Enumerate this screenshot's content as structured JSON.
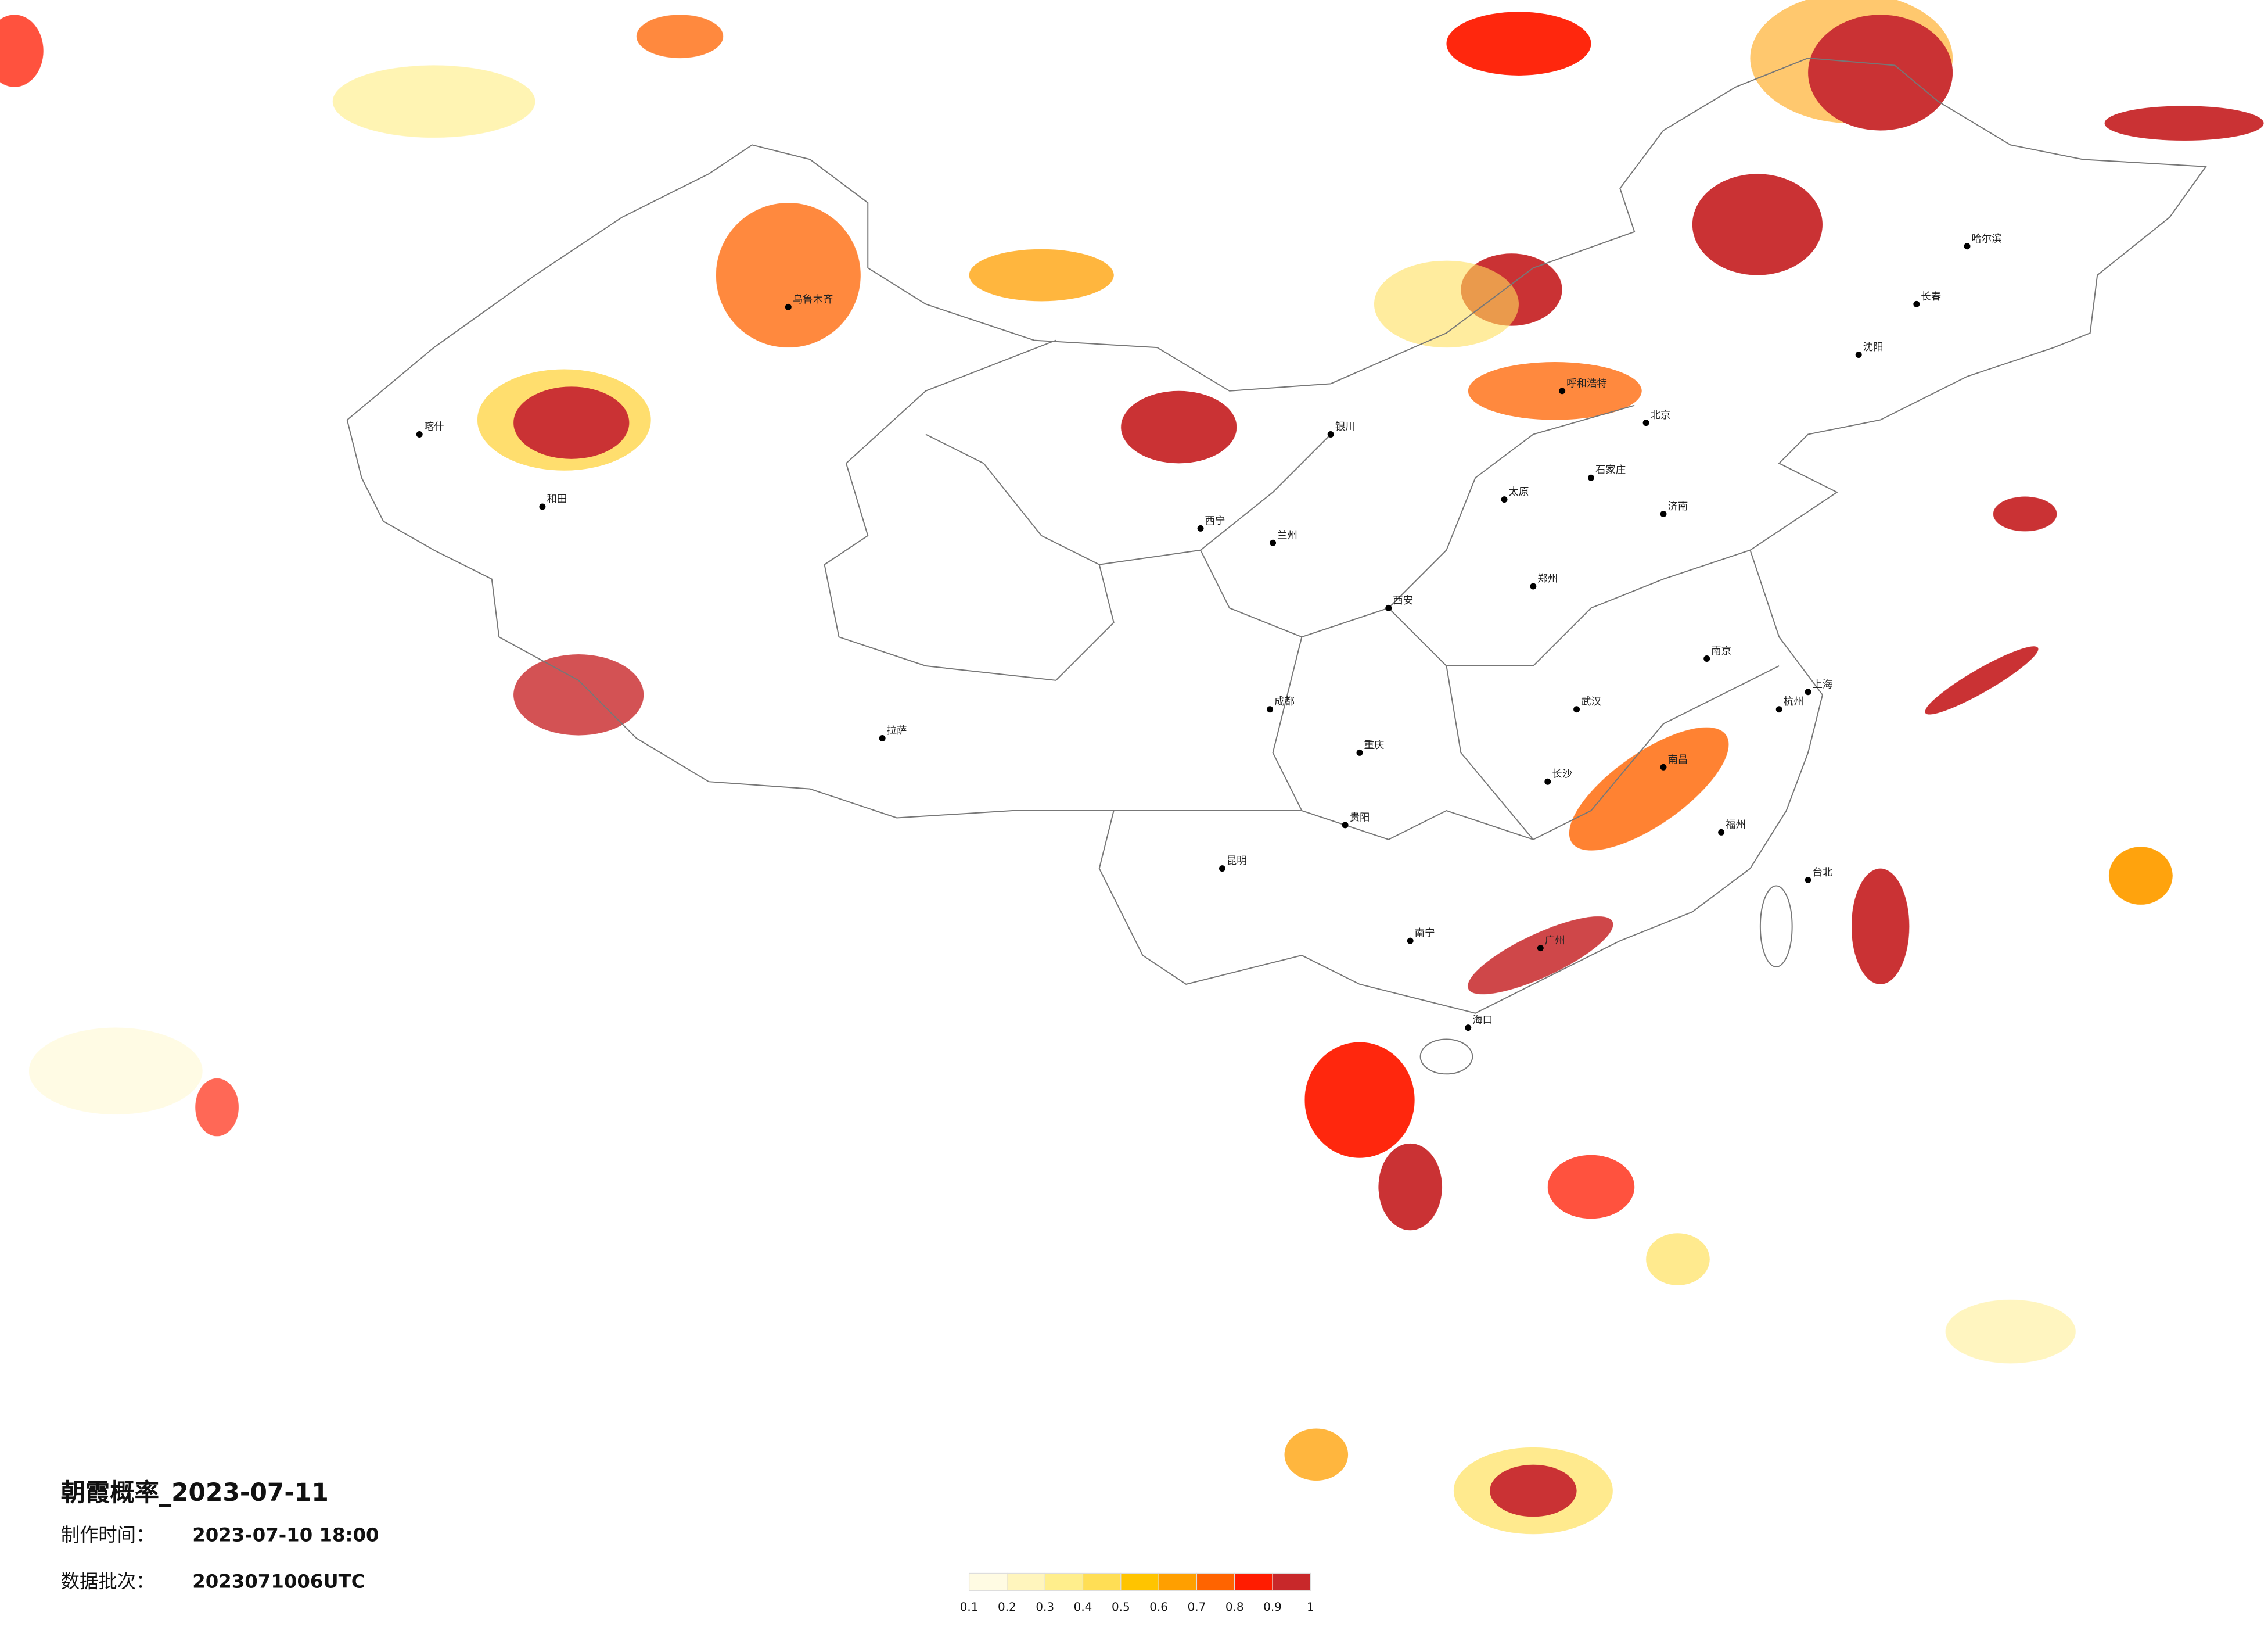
{
  "header": {
    "title": "朝霞概率_2023-07-11",
    "made_label": "制作时间：",
    "made_time": "2023-07-10 18:00",
    "batch_label": "数据批次：",
    "batch": "2023071006UTC"
  },
  "legend": {
    "ticks": [
      0.1,
      0.2,
      0.3,
      0.4,
      0.5,
      0.6,
      0.7,
      0.8,
      0.9,
      1
    ],
    "colors": [
      "#fffbe3",
      "#fff5bd",
      "#ffee8c",
      "#ffde55",
      "#ffc400",
      "#ff9f00",
      "#ff6400",
      "#ff1c00",
      "#c8282a"
    ]
  },
  "cities": [
    "北京",
    "上海",
    "广州",
    "乌鲁木齐",
    "拉萨",
    "哈尔滨",
    "成都",
    "西安",
    "武汉",
    "昆明",
    "呼和浩特",
    "兰州",
    "和田",
    "喀什",
    "长沙",
    "南宁",
    "海口",
    "台北",
    "长春",
    "沈阳",
    "郑州",
    "重庆",
    "贵阳",
    "福州",
    "南京",
    "杭州",
    "济南",
    "太原",
    "石家庄",
    "银川",
    "西宁",
    "南昌"
  ]
}
